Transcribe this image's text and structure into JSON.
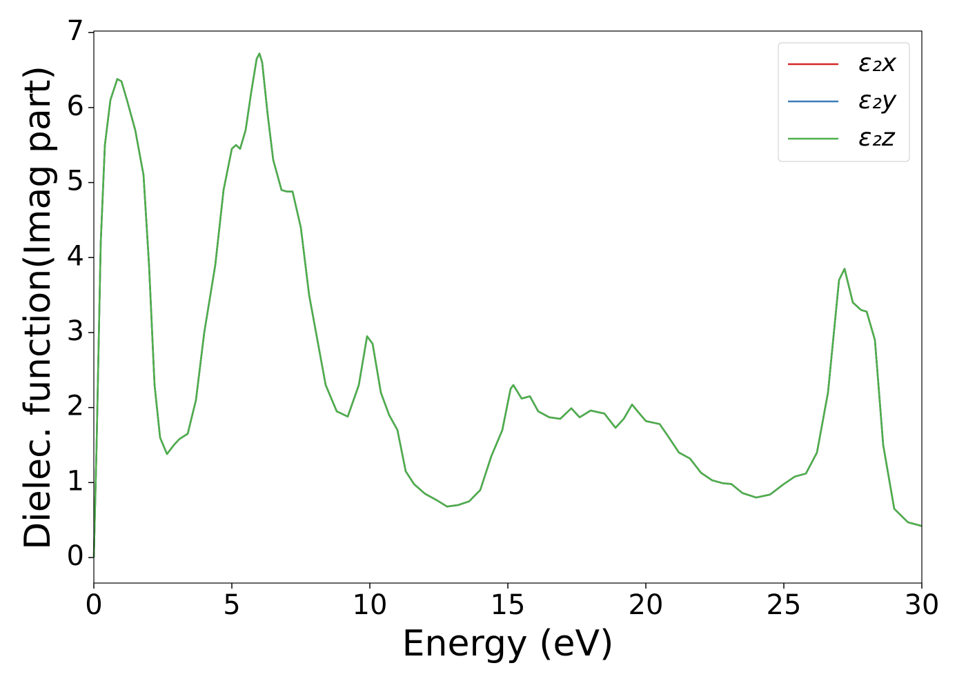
{
  "chart_data": {
    "type": "line",
    "xlabel": "Energy (eV)",
    "ylabel": "Dielec. function(Imag part)",
    "xlim": [
      0,
      30
    ],
    "ylim": [
      -0.34,
      7.02
    ],
    "xticks": [
      0,
      5,
      10,
      15,
      20,
      25,
      30
    ],
    "yticks": [
      0,
      1,
      2,
      3,
      4,
      5,
      6,
      7
    ],
    "legend": "upper right",
    "x": [
      0,
      0.1,
      0.25,
      0.4,
      0.6,
      0.85,
      1.0,
      1.2,
      1.5,
      1.8,
      2.0,
      2.2,
      2.4,
      2.65,
      2.9,
      3.1,
      3.4,
      3.7,
      4.0,
      4.4,
      4.7,
      5.0,
      5.15,
      5.3,
      5.5,
      5.7,
      5.9,
      6.0,
      6.1,
      6.3,
      6.5,
      6.8,
      7.0,
      7.2,
      7.5,
      7.8,
      8.1,
      8.4,
      8.8,
      9.2,
      9.6,
      9.9,
      10.1,
      10.4,
      10.7,
      11.0,
      11.3,
      11.6,
      12.0,
      12.4,
      12.8,
      13.2,
      13.6,
      14.0,
      14.4,
      14.8,
      15.1,
      15.2,
      15.5,
      15.8,
      16.1,
      16.5,
      16.9,
      17.3,
      17.6,
      18.0,
      18.5,
      18.9,
      19.2,
      19.5,
      19.7,
      20.0,
      20.5,
      20.8,
      21.2,
      21.6,
      22.0,
      22.4,
      22.8,
      23.1,
      23.5,
      24.0,
      24.5,
      25.0,
      25.4,
      25.8,
      26.2,
      26.6,
      27.0,
      27.2,
      27.5,
      27.8,
      28.0,
      28.3,
      28.6,
      29.0,
      29.5,
      30.0
    ],
    "series": [
      {
        "name": "ε₂x",
        "color": "#d62728",
        "values": [
          0,
          1.5,
          4.2,
          5.5,
          6.1,
          6.38,
          6.35,
          6.1,
          5.7,
          5.1,
          3.9,
          2.3,
          1.6,
          1.38,
          1.5,
          1.58,
          1.65,
          2.1,
          3.0,
          3.9,
          4.9,
          5.45,
          5.5,
          5.45,
          5.7,
          6.2,
          6.65,
          6.72,
          6.6,
          5.9,
          5.3,
          4.9,
          4.88,
          4.88,
          4.4,
          3.5,
          2.9,
          2.3,
          1.95,
          1.88,
          2.3,
          2.95,
          2.85,
          2.2,
          1.9,
          1.7,
          1.15,
          0.98,
          0.85,
          0.77,
          0.68,
          0.7,
          0.75,
          0.9,
          1.35,
          1.7,
          2.25,
          2.3,
          2.12,
          2.15,
          1.95,
          1.87,
          1.85,
          1.99,
          1.87,
          1.96,
          1.92,
          1.73,
          1.85,
          2.04,
          1.95,
          1.82,
          1.78,
          1.62,
          1.4,
          1.32,
          1.13,
          1.03,
          0.99,
          0.98,
          0.86,
          0.8,
          0.84,
          0.98,
          1.08,
          1.12,
          1.4,
          2.2,
          3.7,
          3.85,
          3.4,
          3.3,
          3.28,
          2.9,
          1.5,
          0.65,
          0.47,
          0.42
        ]
      },
      {
        "name": "ε₂y",
        "color": "#3a7cb8",
        "values": [
          0,
          1.5,
          4.2,
          5.5,
          6.1,
          6.38,
          6.35,
          6.1,
          5.7,
          5.1,
          3.9,
          2.3,
          1.6,
          1.38,
          1.5,
          1.58,
          1.65,
          2.1,
          3.0,
          3.9,
          4.9,
          5.45,
          5.5,
          5.45,
          5.7,
          6.2,
          6.65,
          6.72,
          6.6,
          5.9,
          5.3,
          4.9,
          4.88,
          4.88,
          4.4,
          3.5,
          2.9,
          2.3,
          1.95,
          1.88,
          2.3,
          2.95,
          2.85,
          2.2,
          1.9,
          1.7,
          1.15,
          0.98,
          0.85,
          0.77,
          0.68,
          0.7,
          0.75,
          0.9,
          1.35,
          1.7,
          2.25,
          2.3,
          2.12,
          2.15,
          1.95,
          1.87,
          1.85,
          1.99,
          1.87,
          1.96,
          1.92,
          1.73,
          1.85,
          2.04,
          1.95,
          1.82,
          1.78,
          1.62,
          1.4,
          1.32,
          1.13,
          1.03,
          0.99,
          0.98,
          0.86,
          0.8,
          0.84,
          0.98,
          1.08,
          1.12,
          1.4,
          2.2,
          3.7,
          3.85,
          3.4,
          3.3,
          3.28,
          2.9,
          1.5,
          0.65,
          0.47,
          0.42
        ]
      },
      {
        "name": "ε₂z",
        "color": "#4daf4a",
        "values": [
          0,
          1.5,
          4.2,
          5.5,
          6.1,
          6.38,
          6.35,
          6.1,
          5.7,
          5.1,
          3.9,
          2.3,
          1.6,
          1.38,
          1.5,
          1.58,
          1.65,
          2.1,
          3.0,
          3.9,
          4.9,
          5.45,
          5.5,
          5.45,
          5.7,
          6.2,
          6.65,
          6.72,
          6.6,
          5.9,
          5.3,
          4.9,
          4.88,
          4.88,
          4.4,
          3.5,
          2.9,
          2.3,
          1.95,
          1.88,
          2.3,
          2.95,
          2.85,
          2.2,
          1.9,
          1.7,
          1.15,
          0.98,
          0.85,
          0.77,
          0.68,
          0.7,
          0.75,
          0.9,
          1.35,
          1.7,
          2.25,
          2.3,
          2.12,
          2.15,
          1.95,
          1.87,
          1.85,
          1.99,
          1.87,
          1.96,
          1.92,
          1.73,
          1.85,
          2.04,
          1.95,
          1.82,
          1.78,
          1.62,
          1.4,
          1.32,
          1.13,
          1.03,
          0.99,
          0.98,
          0.86,
          0.8,
          0.84,
          0.98,
          1.08,
          1.12,
          1.4,
          2.2,
          3.7,
          3.85,
          3.4,
          3.3,
          3.28,
          2.9,
          1.5,
          0.65,
          0.47,
          0.42
        ]
      }
    ]
  }
}
